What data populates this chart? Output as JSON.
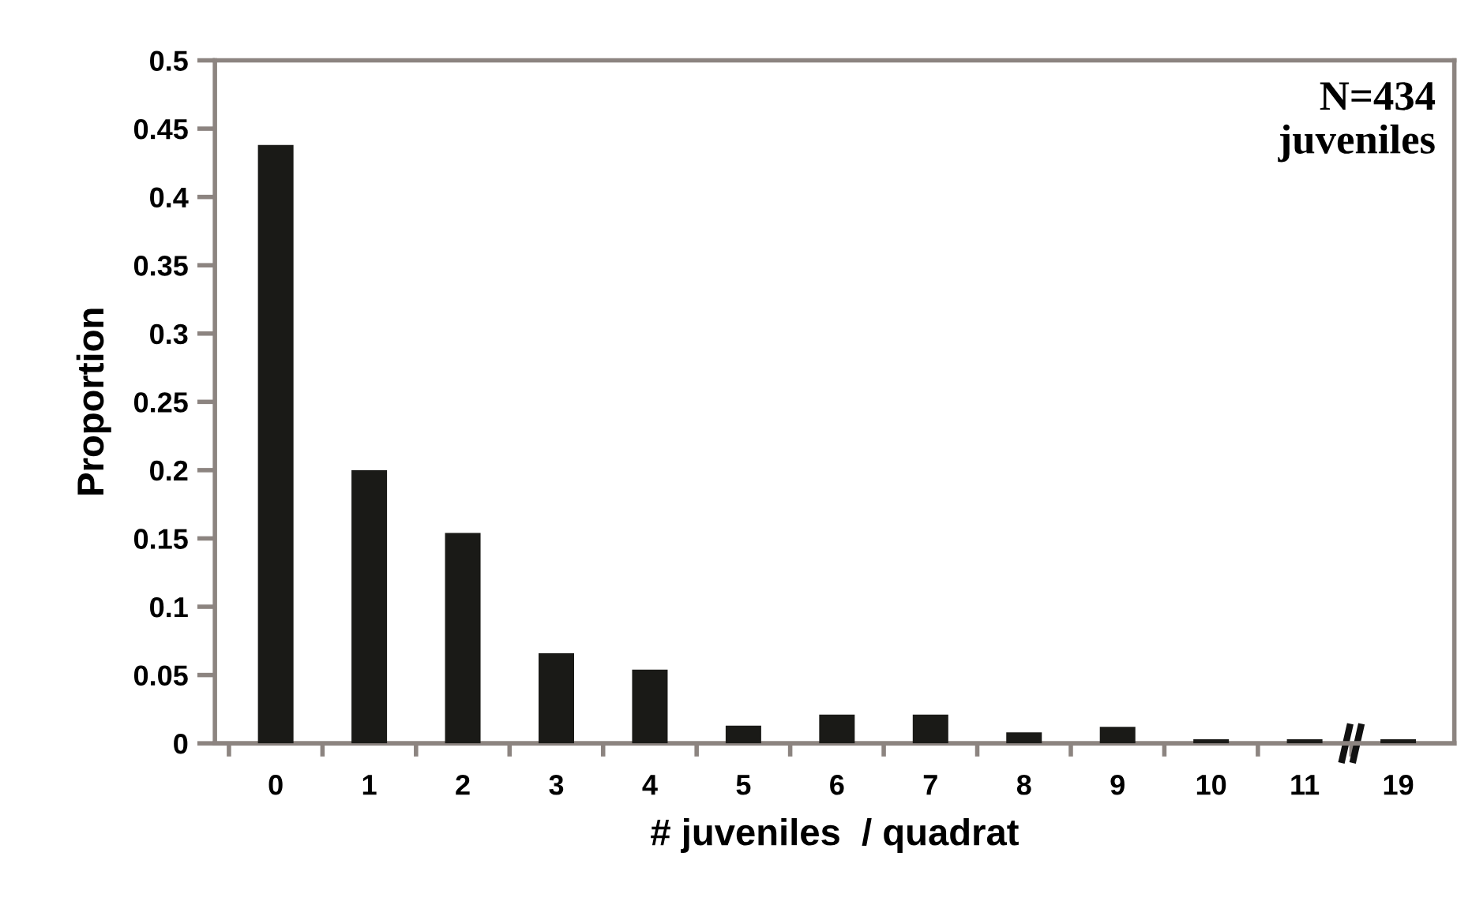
{
  "chart_data": {
    "type": "bar",
    "xlabel": "# juveniles  / quadrat",
    "ylabel": "Proportion",
    "categories": [
      "0",
      "1",
      "2",
      "3",
      "4",
      "5",
      "6",
      "7",
      "8",
      "9",
      "10",
      "11",
      "19"
    ],
    "values": [
      0.438,
      0.2,
      0.154,
      0.066,
      0.054,
      0.013,
      0.021,
      0.021,
      0.008,
      0.012,
      0.003,
      0.003,
      0.003
    ],
    "color": "#1a1a17",
    "ylim": [
      0,
      0.5
    ],
    "yticks": [
      0,
      0.05,
      0.1,
      0.15,
      0.2,
      0.25,
      0.3,
      0.35,
      0.4,
      0.45,
      0.5
    ],
    "grid": false,
    "annotations": [
      "N=434\njuveniles"
    ]
  }
}
